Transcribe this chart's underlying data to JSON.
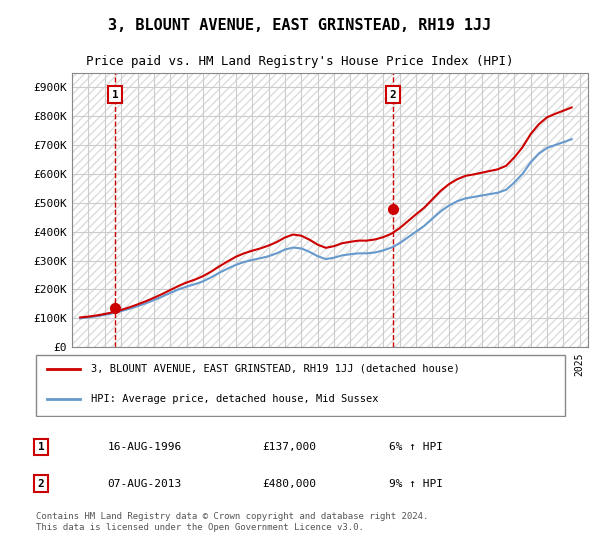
{
  "title": "3, BLOUNT AVENUE, EAST GRINSTEAD, RH19 1JJ",
  "subtitle": "Price paid vs. HM Land Registry's House Price Index (HPI)",
  "ylabel_ticks": [
    "£0",
    "£100K",
    "£200K",
    "£300K",
    "£400K",
    "£500K",
    "£600K",
    "£700K",
    "£800K",
    "£900K"
  ],
  "ytick_values": [
    0,
    100000,
    200000,
    300000,
    400000,
    500000,
    600000,
    700000,
    800000,
    900000
  ],
  "ylim": [
    0,
    950000
  ],
  "xlim_start": 1994.0,
  "xlim_end": 2025.5,
  "sale1": {
    "year": 1996.62,
    "price": 137000,
    "label": "1"
  },
  "sale2": {
    "year": 2013.6,
    "price": 480000,
    "label": "2"
  },
  "legend_line1": "3, BLOUNT AVENUE, EAST GRINSTEAD, RH19 1JJ (detached house)",
  "legend_line2": "HPI: Average price, detached house, Mid Sussex",
  "table_row1": [
    "1",
    "16-AUG-1996",
    "£137,000",
    "6% ↑ HPI"
  ],
  "table_row2": [
    "2",
    "07-AUG-2013",
    "£480,000",
    "9% ↑ HPI"
  ],
  "footnote": "Contains HM Land Registry data © Crown copyright and database right 2024.\nThis data is licensed under the Open Government Licence v3.0.",
  "line_color_red": "#cc0000",
  "line_color_blue": "#6699cc",
  "background_hatch_color": "#e8e8e8",
  "grid_color": "#cccccc",
  "hpi_years": [
    1994.5,
    1995,
    1995.5,
    1996,
    1996.5,
    1997,
    1997.5,
    1998,
    1998.5,
    1999,
    1999.5,
    2000,
    2000.5,
    2001,
    2001.5,
    2002,
    2002.5,
    2003,
    2003.5,
    2004,
    2004.5,
    2005,
    2005.5,
    2006,
    2006.5,
    2007,
    2007.5,
    2008,
    2008.5,
    2009,
    2009.5,
    2010,
    2010.5,
    2011,
    2011.5,
    2012,
    2012.5,
    2013,
    2013.5,
    2014,
    2014.5,
    2015,
    2015.5,
    2016,
    2016.5,
    2017,
    2017.5,
    2018,
    2018.5,
    2019,
    2019.5,
    2020,
    2020.5,
    2021,
    2021.5,
    2022,
    2022.5,
    2023,
    2023.5,
    2024,
    2024.5
  ],
  "hpi_values": [
    100000,
    103000,
    107000,
    112000,
    118000,
    125000,
    133000,
    142000,
    152000,
    163000,
    175000,
    188000,
    200000,
    210000,
    218000,
    228000,
    242000,
    258000,
    272000,
    285000,
    295000,
    302000,
    308000,
    315000,
    325000,
    338000,
    345000,
    342000,
    330000,
    315000,
    305000,
    310000,
    318000,
    322000,
    325000,
    325000,
    328000,
    335000,
    345000,
    360000,
    380000,
    400000,
    420000,
    445000,
    470000,
    490000,
    505000,
    515000,
    520000,
    525000,
    530000,
    535000,
    545000,
    570000,
    600000,
    640000,
    670000,
    690000,
    700000,
    710000,
    720000
  ],
  "red_years": [
    1994.5,
    1995,
    1995.5,
    1996,
    1996.5,
    1997,
    1997.5,
    1998,
    1998.5,
    1999,
    1999.5,
    2000,
    2000.5,
    2001,
    2001.5,
    2002,
    2002.5,
    2003,
    2003.5,
    2004,
    2004.5,
    2005,
    2005.5,
    2006,
    2006.5,
    2007,
    2007.5,
    2008,
    2008.5,
    2009,
    2009.5,
    2010,
    2010.5,
    2011,
    2011.5,
    2012,
    2012.5,
    2013,
    2013.5,
    2014,
    2014.5,
    2015,
    2015.5,
    2016,
    2016.5,
    2017,
    2017.5,
    2018,
    2018.5,
    2019,
    2019.5,
    2020,
    2020.5,
    2021,
    2021.5,
    2022,
    2022.5,
    2023,
    2023.5,
    2024,
    2024.5
  ],
  "red_values": [
    103000,
    106000,
    110000,
    115000,
    121000,
    129000,
    138000,
    148000,
    159000,
    171000,
    184000,
    198000,
    212000,
    224000,
    234000,
    246000,
    262000,
    280000,
    297000,
    313000,
    325000,
    334000,
    342000,
    352000,
    364000,
    380000,
    390000,
    386000,
    372000,
    355000,
    344000,
    350000,
    360000,
    365000,
    369000,
    369000,
    373000,
    381000,
    393000,
    412000,
    436000,
    460000,
    483000,
    512000,
    541000,
    564000,
    581000,
    593000,
    598000,
    604000,
    610000,
    616000,
    628000,
    657000,
    692000,
    738000,
    772000,
    796000,
    808000,
    819000,
    830000
  ]
}
